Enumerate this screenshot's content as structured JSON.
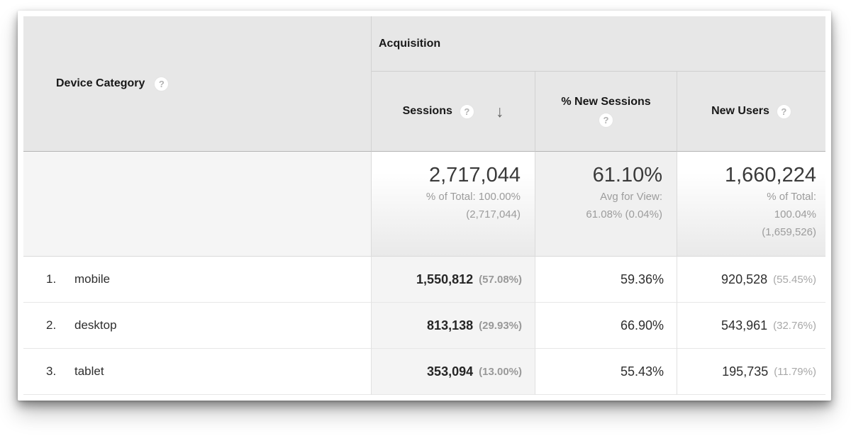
{
  "header": {
    "device_column": "Device Category",
    "group": "Acquisition",
    "metrics": [
      "Sessions",
      "% New Sessions",
      "New Users"
    ],
    "sorted_metric": "Sessions",
    "sort_direction": "descending"
  },
  "icons": {
    "help": "?",
    "sort_descending": "↓"
  },
  "summary": {
    "sessions_value": "2,717,044",
    "sessions_sub1": "% of Total: 100.00%",
    "sessions_sub2": "(2,717,044)",
    "new_sessions_value": "61.10%",
    "new_sessions_sub1": "Avg for View:",
    "new_sessions_sub2": "61.08% (0.04%)",
    "new_users_value": "1,660,224",
    "new_users_sub1": "% of Total:",
    "new_users_sub2": "100.04%",
    "new_users_sub3": "(1,659,526)"
  },
  "rows": [
    {
      "rank": "1.",
      "device": "mobile",
      "sessions": "1,550,812",
      "sessions_pct": "(57.08%)",
      "pct_new_sessions": "59.36%",
      "new_users": "920,528",
      "new_users_pct": "(55.45%)"
    },
    {
      "rank": "2.",
      "device": "desktop",
      "sessions": "813,138",
      "sessions_pct": "(29.93%)",
      "pct_new_sessions": "66.90%",
      "new_users": "543,961",
      "new_users_pct": "(32.76%)"
    },
    {
      "rank": "3.",
      "device": "tablet",
      "sessions": "353,094",
      "sessions_pct": "(13.00%)",
      "pct_new_sessions": "55.43%",
      "new_users": "195,735",
      "new_users_pct": "(11.79%)"
    }
  ],
  "colors": {
    "header_bg": "#e7e7e7",
    "sorted_column_bg": "#f4f4f4",
    "muted_text": "#9c9c9c"
  }
}
